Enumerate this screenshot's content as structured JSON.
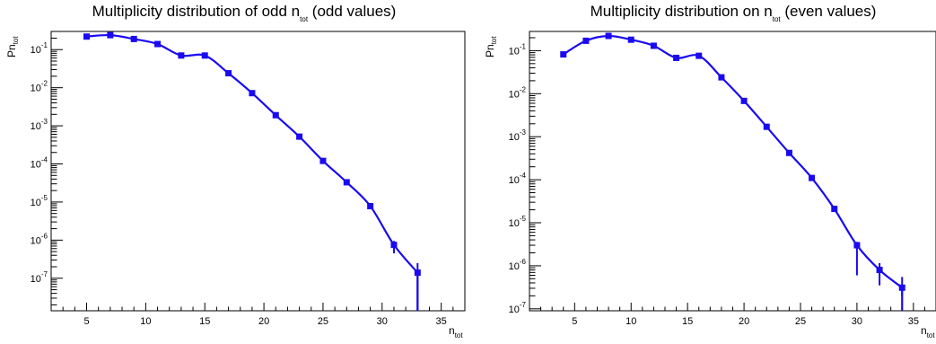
{
  "chart_data": [
    {
      "type": "line",
      "title_main": "Multiplicity distribution of odd n",
      "title_sub": "tot",
      "title_tail": " (odd values)",
      "xlabel_main": "n",
      "xlabel_sub": "tot",
      "ylabel_main": "Pn",
      "ylabel_sub": "tot",
      "yscale": "log",
      "xlim": [
        2,
        37
      ],
      "ylim": [
        1.4e-08,
        0.3
      ],
      "xticks": [
        5,
        10,
        15,
        20,
        25,
        30,
        35
      ],
      "yticks": [
        {
          "value": 1e-07,
          "mant": "10",
          "exp": "-7"
        },
        {
          "value": 1e-06,
          "mant": "10",
          "exp": "-6"
        },
        {
          "value": 1e-05,
          "mant": "10",
          "exp": "-5"
        },
        {
          "value": 0.0001,
          "mant": "10",
          "exp": "-4"
        },
        {
          "value": 0.001,
          "mant": "10",
          "exp": "-3"
        },
        {
          "value": 0.01,
          "mant": "10",
          "exp": "-2"
        },
        {
          "value": 0.1,
          "mant": "10",
          "exp": "-1"
        }
      ],
      "color": "#1a0af0",
      "x": [
        5,
        7,
        9,
        11,
        13,
        15,
        17,
        19,
        21,
        23,
        25,
        27,
        29,
        31,
        33
      ],
      "y": [
        0.22,
        0.24,
        0.19,
        0.14,
        0.07,
        0.07,
        0.024,
        0.0072,
        0.0019,
        0.00052,
        0.00012,
        3.3e-05,
        7.8e-06,
        7.5e-07,
        1.4e-07
      ],
      "err_low": [
        0,
        0,
        0,
        0,
        0,
        0,
        0,
        0,
        0,
        0,
        0,
        0,
        0,
        4.5e-07,
        1.4e-07
      ],
      "err_high": [
        0,
        0,
        0,
        0,
        0,
        0,
        0,
        0,
        0,
        0,
        0,
        0,
        0,
        9.5e-07,
        2.5e-07
      ]
    },
    {
      "type": "line",
      "title_main": "Multiplicity distribution on n",
      "title_sub": "tot",
      "title_tail": " (even values)",
      "xlabel_main": "n",
      "xlabel_sub": "tot",
      "ylabel_main": "Pn",
      "ylabel_sub": "tot",
      "yscale": "log",
      "xlim": [
        1,
        37
      ],
      "ylim": [
        9e-08,
        0.28
      ],
      "xticks": [
        5,
        10,
        15,
        20,
        25,
        30,
        35
      ],
      "yticks": [
        {
          "value": 1e-07,
          "mant": "10",
          "exp": "-7"
        },
        {
          "value": 1e-06,
          "mant": "10",
          "exp": "-6"
        },
        {
          "value": 1e-05,
          "mant": "10",
          "exp": "-5"
        },
        {
          "value": 0.0001,
          "mant": "10",
          "exp": "-4"
        },
        {
          "value": 0.001,
          "mant": "10",
          "exp": "-3"
        },
        {
          "value": 0.01,
          "mant": "10",
          "exp": "-2"
        },
        {
          "value": 0.1,
          "mant": "10",
          "exp": "-1"
        }
      ],
      "color": "#1a0af0",
      "x": [
        4,
        6,
        8,
        10,
        12,
        14,
        16,
        18,
        20,
        22,
        24,
        26,
        28,
        30,
        32,
        34
      ],
      "y": [
        0.082,
        0.17,
        0.22,
        0.18,
        0.13,
        0.068,
        0.076,
        0.024,
        0.0068,
        0.0017,
        0.00042,
        0.00011,
        2.1e-05,
        3e-06,
        8e-07,
        3.1e-07
      ],
      "err_low": [
        0,
        0,
        0,
        0,
        0,
        0,
        0,
        0,
        0,
        0,
        0,
        0,
        0,
        6e-07,
        3.5e-07,
        2e-07
      ],
      "err_high": [
        0,
        0,
        0,
        0,
        0,
        0,
        0,
        0,
        0,
        0,
        0,
        0,
        0,
        3.6e-06,
        1.15e-06,
        5.5e-07
      ]
    }
  ]
}
